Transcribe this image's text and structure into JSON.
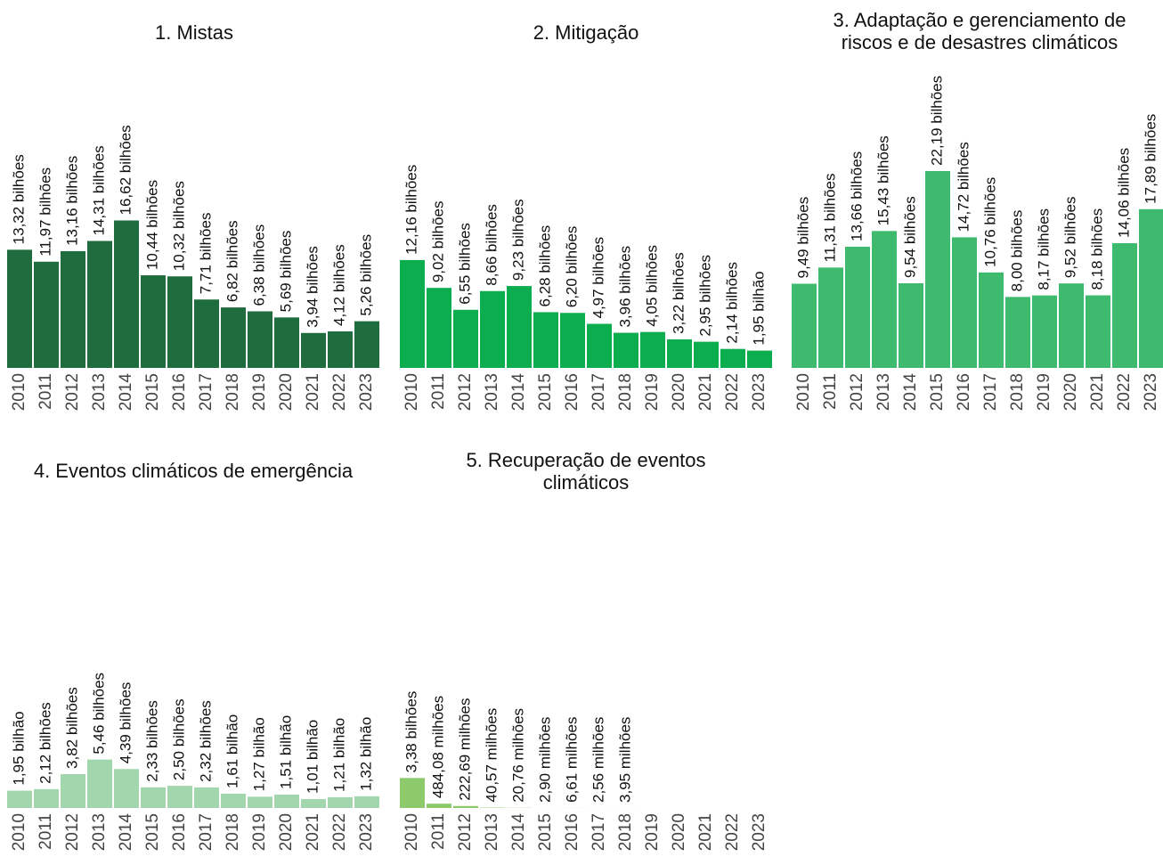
{
  "chart_data": [
    {
      "type": "bar",
      "title": "1. Mistas",
      "color": "#1f6d3e",
      "categories": [
        "2010",
        "2011",
        "2012",
        "2013",
        "2014",
        "2015",
        "2016",
        "2017",
        "2018",
        "2019",
        "2020",
        "2021",
        "2022",
        "2023"
      ],
      "values": [
        13.32,
        11.97,
        13.16,
        14.31,
        16.62,
        10.44,
        10.32,
        7.71,
        6.82,
        6.38,
        5.69,
        3.94,
        4.12,
        5.26
      ],
      "value_labels": [
        "13,32 bilhões",
        "11,97 bilhões",
        "13,16 bilhões",
        "14,31 bilhões",
        "16,62 bilhões",
        "10,44 bilhões",
        "10,32 bilhões",
        "7,71 bilhões",
        "6,82 bilhões",
        "6,38 bilhões",
        "5,69 bilhões",
        "3,94 bilhões",
        "4,12 bilhões",
        "5,26 bilhões"
      ]
    },
    {
      "type": "bar",
      "title": "2. Mitigação",
      "color": "#0bad4f",
      "categories": [
        "2010",
        "2011",
        "2012",
        "2013",
        "2014",
        "2015",
        "2016",
        "2017",
        "2018",
        "2019",
        "2020",
        "2021",
        "2022",
        "2023"
      ],
      "values": [
        12.16,
        9.02,
        6.55,
        8.66,
        9.23,
        6.28,
        6.2,
        4.97,
        3.96,
        4.05,
        3.22,
        2.95,
        2.14,
        1.95
      ],
      "value_labels": [
        "12,16 bilhões",
        "9,02 bilhões",
        "6,55 bilhões",
        "8,66 bilhões",
        "9,23 bilhões",
        "6,28 bilhões",
        "6,20 bilhões",
        "4,97 bilhões",
        "3,96 bilhões",
        "4,05 bilhões",
        "3,22 bilhões",
        "2,95 bilhões",
        "2,14 bilhões",
        "1,95 bilhão"
      ]
    },
    {
      "type": "bar",
      "title": "3. Adaptação e gerenciamento de riscos e de desastres climáticos",
      "color": "#3dba6e",
      "categories": [
        "2010",
        "2011",
        "2012",
        "2013",
        "2014",
        "2015",
        "2016",
        "2017",
        "2018",
        "2019",
        "2020",
        "2021",
        "2022",
        "2023"
      ],
      "values": [
        9.49,
        11.31,
        13.66,
        15.43,
        9.54,
        22.19,
        14.72,
        10.76,
        8.0,
        8.17,
        9.52,
        8.18,
        14.06,
        17.89
      ],
      "value_labels": [
        "9,49 bilhões",
        "11,31 bilhões",
        "13,66 bilhões",
        "15,43 bilhões",
        "9,54 bilhões",
        "22,19 bilhões",
        "14,72 bilhões",
        "10,76 bilhões",
        "8,00 bilhões",
        "8,17 bilhões",
        "9,52 bilhões",
        "8,18 bilhões",
        "14,06 bilhões",
        "17,89 bilhões"
      ]
    },
    {
      "type": "bar",
      "title": "4. Eventos climáticos de emergência",
      "color": "#a2d6ac",
      "categories": [
        "2010",
        "2011",
        "2012",
        "2013",
        "2014",
        "2015",
        "2016",
        "2017",
        "2018",
        "2019",
        "2020",
        "2021",
        "2022",
        "2023"
      ],
      "values": [
        1.95,
        2.12,
        3.82,
        5.46,
        4.39,
        2.33,
        2.5,
        2.32,
        1.61,
        1.27,
        1.51,
        1.01,
        1.21,
        1.32
      ],
      "value_labels": [
        "1,95 bilhão",
        "2,12 bilhões",
        "3,82 bilhões",
        "5,46 bilhões",
        "4,39 bilhões",
        "2,33 bilhões",
        "2,50 bilhões",
        "2,32 bilhões",
        "1,61 bilhão",
        "1,27 bilhão",
        "1,51 bilhão",
        "1,01 bilhão",
        "1,21 bilhão",
        "1,32 bilhão"
      ]
    },
    {
      "type": "bar",
      "title": "5. Recuperação de eventos climáticos",
      "color": "#8cca6b",
      "categories": [
        "2010",
        "2011",
        "2012",
        "2013",
        "2014",
        "2015",
        "2016",
        "2017",
        "2018",
        "2019",
        "2020",
        "2021",
        "2022",
        "2023"
      ],
      "values": [
        3.38,
        0.48408,
        0.22269,
        0.04057,
        0.02076,
        0.0029,
        0.00661,
        0.00256,
        0.00395,
        0,
        0,
        0,
        0,
        0
      ],
      "value_labels": [
        "3,38 bilhões",
        "484,08 milhões",
        "222,69 milhões",
        "40,57 milhões",
        "20,76 milhões",
        "2,90 milhões",
        "6,61 milhões",
        "2,56 milhões",
        "3,95 milhões",
        null,
        null,
        null,
        null,
        null
      ]
    }
  ]
}
